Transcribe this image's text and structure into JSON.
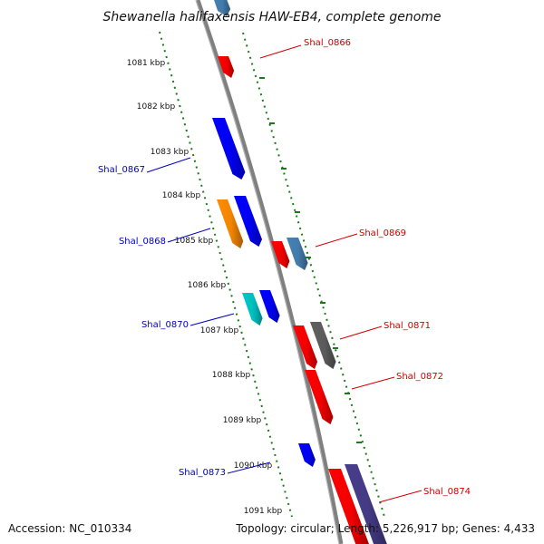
{
  "title": "Shewanella halifaxensis HAW-EB4, complete genome",
  "footer": {
    "accession": "Accession: NC_010334",
    "summary": "Topology: circular; Length: 5,226,917 bp; Genes: 4,433"
  },
  "colors": {
    "backbone": "#808080",
    "tick": "#1a7a1a",
    "plus_label": "#d00000",
    "minus_label": "#0000c0"
  },
  "ticks": [
    {
      "label": "1081 kbp"
    },
    {
      "label": "1082 kbp"
    },
    {
      "label": "1083 kbp"
    },
    {
      "label": "1084 kbp"
    },
    {
      "label": "1085 kbp"
    },
    {
      "label": "1086 kbp"
    },
    {
      "label": "1087 kbp"
    },
    {
      "label": "1088 kbp"
    },
    {
      "label": "1089 kbp"
    },
    {
      "label": "1090 kbp"
    },
    {
      "label": "1091 kbp"
    }
  ],
  "genes": [
    {
      "label": "Shal_0866",
      "strand": "+",
      "color": "#ff0000"
    },
    {
      "label": "Shal_0867",
      "strand": "-",
      "color": "#0000ff"
    },
    {
      "label": "Shal_0868",
      "strand": "-",
      "color": "#ff8c00"
    },
    {
      "label": "Shal_0869",
      "strand": "+",
      "color": "#ff0000"
    },
    {
      "label": "Shal_0870",
      "strand": "-",
      "color": "#00c8c8"
    },
    {
      "label": "Shal_0871",
      "strand": "+",
      "color": "#ff0000"
    },
    {
      "label": "Shal_0872",
      "strand": "+",
      "color": "#ff0000"
    },
    {
      "label": "Shal_0873",
      "strand": "-",
      "color": "#0000ff"
    },
    {
      "label": "Shal_0874",
      "strand": "+",
      "color": "#ff0000"
    }
  ],
  "other_features": [
    {
      "strand": "+",
      "color": "#4682b4"
    },
    {
      "strand": "-",
      "color": "#0000ff"
    },
    {
      "strand": "-",
      "color": "#0000ff"
    },
    {
      "strand": "+",
      "color": "#4682b4"
    },
    {
      "strand": "+",
      "color": "#606060"
    },
    {
      "strand": "+",
      "color": "#483d8b"
    }
  ]
}
